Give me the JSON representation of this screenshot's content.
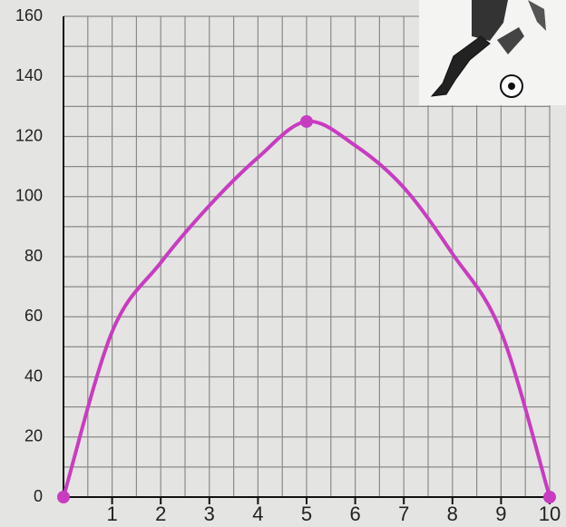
{
  "chart_data": {
    "type": "line",
    "x": [
      0,
      1,
      2,
      3,
      4,
      5,
      6,
      7,
      8,
      9,
      10
    ],
    "series": [
      {
        "color": "#c83cc0",
        "values": [
          0,
          55,
          78,
          97,
          113,
          125,
          117,
          103,
          81,
          55,
          0
        ]
      }
    ],
    "points": {
      "x": [
        0,
        5,
        10
      ],
      "values": [
        0,
        125,
        0
      ],
      "color": "#c83cc0"
    },
    "xlim": [
      0,
      10
    ],
    "xticks": [
      1,
      2,
      3,
      4,
      5,
      6,
      7,
      8,
      9,
      10
    ],
    "ylim": [
      0,
      160
    ],
    "yticks": [
      0,
      20,
      40,
      60,
      80,
      100,
      120,
      140,
      160
    ],
    "grid": true
  }
}
